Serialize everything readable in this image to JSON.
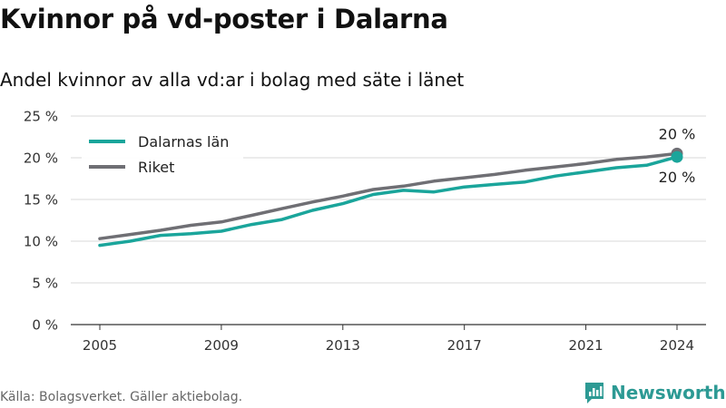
{
  "header": {
    "title": "Kvinnor på vd-poster i Dalarna",
    "subtitle": "Andel kvinnor av alla vd:ar i bolag med säte i länet"
  },
  "footer": {
    "source": "Källa: Bolagsverket. Gäller aktiebolag.",
    "brand": "Newsworthy"
  },
  "colors": {
    "dalarna": "#1aa59b",
    "riket": "#6f6f74",
    "grid": "#d9d9d9",
    "axis": "#555555",
    "brand": "#2d9a94"
  },
  "chart_data": {
    "type": "line",
    "title": "Kvinnor på vd-poster i Dalarna",
    "subtitle": "Andel kvinnor av alla vd:ar i bolag med säte i länet",
    "xlabel": "",
    "ylabel": "",
    "x": [
      2005,
      2006,
      2007,
      2008,
      2009,
      2010,
      2011,
      2012,
      2013,
      2014,
      2015,
      2016,
      2017,
      2018,
      2019,
      2020,
      2021,
      2022,
      2023,
      2024
    ],
    "xticks": [
      2005,
      2009,
      2013,
      2017,
      2021,
      2024
    ],
    "xtick_labels": [
      "2005",
      "2009",
      "2013",
      "2017",
      "2021",
      "2024"
    ],
    "ylim": [
      0,
      25
    ],
    "yticks": [
      0,
      5,
      10,
      15,
      20,
      25
    ],
    "ytick_labels": [
      "0 %",
      "5 %",
      "10 %",
      "15 %",
      "20 %",
      "25 %"
    ],
    "grid": true,
    "legend_position": "top-left",
    "series": [
      {
        "name": "Dalarnas län",
        "color": "#1aa59b",
        "values": [
          9.5,
          10.0,
          10.7,
          10.9,
          11.2,
          12.0,
          12.6,
          13.7,
          14.5,
          15.6,
          16.1,
          15.9,
          16.5,
          16.8,
          17.1,
          17.8,
          18.3,
          18.8,
          19.1,
          20.1
        ],
        "end_label": "20 %"
      },
      {
        "name": "Riket",
        "color": "#6f6f74",
        "values": [
          10.3,
          10.8,
          11.3,
          11.9,
          12.3,
          13.1,
          13.9,
          14.7,
          15.4,
          16.2,
          16.6,
          17.2,
          17.6,
          18.0,
          18.5,
          18.9,
          19.3,
          19.8,
          20.1,
          20.5
        ],
        "end_label": "20 %"
      }
    ]
  }
}
